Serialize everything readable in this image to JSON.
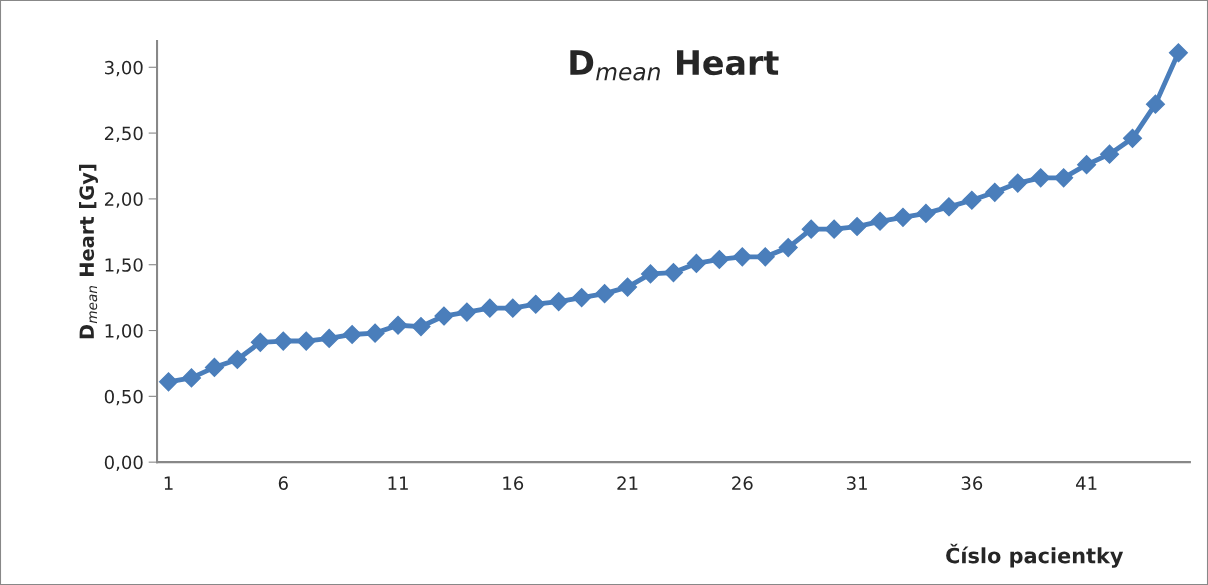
{
  "chart_data": {
    "type": "line",
    "title": "D$_{mean}$ Heart",
    "xlabel": "Číslo pacientky",
    "ylabel": "D$_{mean}$ Heart [Gy]",
    "categories": [
      "1",
      null,
      null,
      null,
      null,
      "6",
      null,
      null,
      null,
      null,
      "11",
      null,
      null,
      null,
      null,
      "16",
      null,
      null,
      null,
      null,
      "21",
      null,
      null,
      null,
      null,
      "26",
      null,
      null,
      null,
      null,
      "31",
      null,
      null,
      null,
      null,
      "36",
      null,
      null,
      null,
      null,
      "41",
      null,
      null,
      null,
      null
    ],
    "series": [
      {
        "color": "#4a7ebb",
        "values": [
          0.61,
          0.64,
          0.72,
          0.78,
          0.91,
          0.92,
          0.92,
          0.94,
          0.97,
          0.98,
          1.04,
          1.03,
          1.11,
          1.14,
          1.17,
          1.17,
          1.2,
          1.22,
          1.25,
          1.28,
          1.33,
          1.43,
          1.44,
          1.51,
          1.54,
          1.56,
          1.56,
          1.63,
          1.77,
          1.77,
          1.79,
          1.83,
          1.86,
          1.89,
          1.94,
          1.99,
          2.05,
          2.12,
          2.16,
          2.16,
          2.26,
          2.34,
          2.46,
          2.72,
          3.11
        ]
      }
    ],
    "ylim": [
      0,
      3.2
    ],
    "yticks": [
      {
        "value": 0,
        "label": "0,00"
      },
      {
        "value": 0.5,
        "label": "0,50"
      },
      {
        "value": 1,
        "label": "1,00"
      },
      {
        "value": 1.5,
        "label": "1,50"
      },
      {
        "value": 2,
        "label": "2,00"
      },
      {
        "value": 2.5,
        "label": "2,50"
      },
      {
        "value": 3,
        "label": "3,00"
      }
    ],
    "marker": "diamond",
    "line_style": "solid",
    "grid": false,
    "legend": false
  }
}
